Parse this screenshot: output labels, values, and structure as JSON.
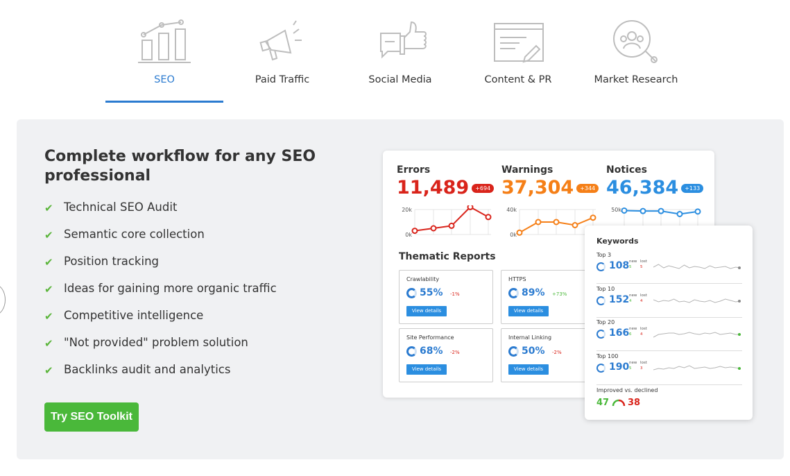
{
  "tabs": [
    {
      "label": "SEO",
      "icon": "bar-chart-icon",
      "active": true
    },
    {
      "label": "Paid Traffic",
      "icon": "megaphone-icon"
    },
    {
      "label": "Social Media",
      "icon": "thumbs-up-icon"
    },
    {
      "label": "Content & PR",
      "icon": "document-pen-icon"
    },
    {
      "label": "Market Research",
      "icon": "people-search-icon"
    }
  ],
  "headline": "Complete workflow for any SEO professional",
  "features": [
    "Technical SEO Audit",
    "Semantic core collection",
    "Position tracking",
    "Ideas for gaining more organic traffic",
    "Competitive intelligence",
    "\"Not provided\" problem solution",
    "Backlinks audit and analytics"
  ],
  "cta_label": "Try SEO Toolkit",
  "metrics": [
    {
      "label": "Errors",
      "value": "11,489",
      "badge": "+694",
      "color": "#d9241b",
      "axis_top": "20k",
      "axis_bottom": "0k",
      "points": [
        3,
        5,
        7,
        22,
        14
      ]
    },
    {
      "label": "Warnings",
      "value": "37,304",
      "badge": "+344",
      "color": "#f57f17",
      "axis_top": "40k",
      "axis_bottom": "0k",
      "points": [
        3,
        20,
        20,
        15,
        27
      ]
    },
    {
      "label": "Notices",
      "value": "46,384",
      "badge": "+133",
      "color": "#2b8ee0",
      "axis_top": "50k",
      "axis_bottom": "",
      "points": [
        48,
        47,
        47,
        41,
        46
      ]
    }
  ],
  "thematic_title": "Thematic Reports",
  "reports": [
    {
      "name": "Crawlability",
      "pct": "55%",
      "delta": "-1%",
      "delta_color": "#d9241b",
      "button": "View details"
    },
    {
      "name": "HTTPS",
      "pct": "89%",
      "delta": "+73%",
      "delta_color": "#4ab83a",
      "button": "View details"
    },
    {
      "name": "Site Performance",
      "pct": "68%",
      "delta": "-2%",
      "delta_color": "#d9241b",
      "button": "View details"
    },
    {
      "name": "Internal Linking",
      "pct": "50%",
      "delta": "-2%",
      "delta_color": "#d9241b",
      "button": "View details"
    }
  ],
  "keywords": {
    "title": "Keywords",
    "rows": [
      {
        "label": "Top 3",
        "value": "108",
        "new_label": "new",
        "new": "5",
        "lost_label": "lost",
        "lost": "5",
        "end_color": "#888"
      },
      {
        "label": "Top 10",
        "value": "152",
        "new_label": "new",
        "new": "4",
        "lost_label": "lost",
        "lost": "4",
        "end_color": "#888"
      },
      {
        "label": "Top 20",
        "value": "166",
        "new_label": "new",
        "new": "6",
        "lost_label": "lost",
        "lost": "4",
        "end_color": "#4ab83a"
      },
      {
        "label": "Top 100",
        "value": "190",
        "new_label": "new",
        "new": "5",
        "lost_label": "lost",
        "lost": "3",
        "end_color": "#4ab83a"
      }
    ],
    "improved_label": "Improved vs. declined",
    "improved": "47",
    "declined": "38"
  }
}
